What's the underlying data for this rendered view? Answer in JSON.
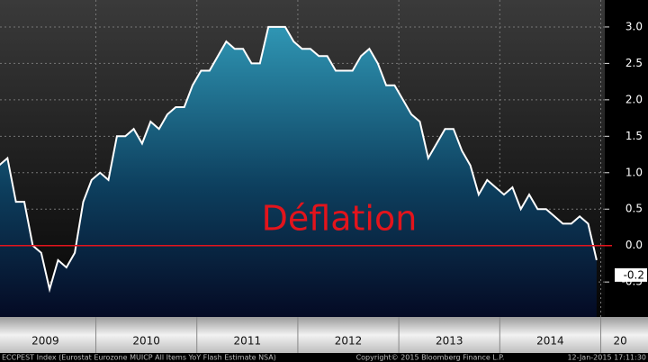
{
  "chart_data": {
    "type": "area",
    "values": [
      1.1,
      1.2,
      0.6,
      0.6,
      0.0,
      -0.1,
      -0.6,
      -0.2,
      -0.3,
      -0.1,
      0.6,
      0.9,
      1.0,
      0.9,
      1.5,
      1.5,
      1.6,
      1.4,
      1.7,
      1.6,
      1.8,
      1.9,
      1.9,
      2.2,
      2.4,
      2.4,
      2.6,
      2.8,
      2.7,
      2.7,
      2.5,
      2.5,
      3.0,
      3.0,
      3.0,
      2.8,
      2.7,
      2.7,
      2.6,
      2.6,
      2.4,
      2.4,
      2.4,
      2.6,
      2.7,
      2.5,
      2.2,
      2.2,
      2.0,
      1.8,
      1.7,
      1.2,
      1.4,
      1.6,
      1.6,
      1.3,
      1.1,
      0.7,
      0.9,
      0.8,
      0.7,
      0.8,
      0.5,
      0.7,
      0.5,
      0.5,
      0.4,
      0.3,
      0.3,
      0.4,
      0.3,
      -0.2
    ],
    "color": "#ffffff",
    "fill_color": "#2a8aa8",
    "xlabels": [
      "2009",
      "2010",
      "2011",
      "2012",
      "2013",
      "2014",
      "20"
    ],
    "ylim": [
      -0.98,
      3.37
    ],
    "yticks": [
      {
        "value": 3,
        "label": "3.0"
      },
      2.5,
      {
        "value": 2,
        "label": "2.0"
      },
      1.5,
      {
        "value": 1,
        "label": "1.0"
      },
      0.5,
      {
        "value": 0,
        "label": "0.0"
      },
      -0.5
    ],
    "grid": true,
    "reference_line": {
      "value": 0,
      "color": "#e3141c"
    },
    "annotation": {
      "text": "Déflation",
      "color": "#e3141c"
    },
    "footer": {
      "left": "ECCPEST Index (Eurostat Eurozone MUICP All Items YoY Flash Estimate NSA)",
      "center": "Copyright© 2015 Bloomberg Finance L.P.",
      "right": "12-Jan-2015 17:11:30"
    }
  }
}
